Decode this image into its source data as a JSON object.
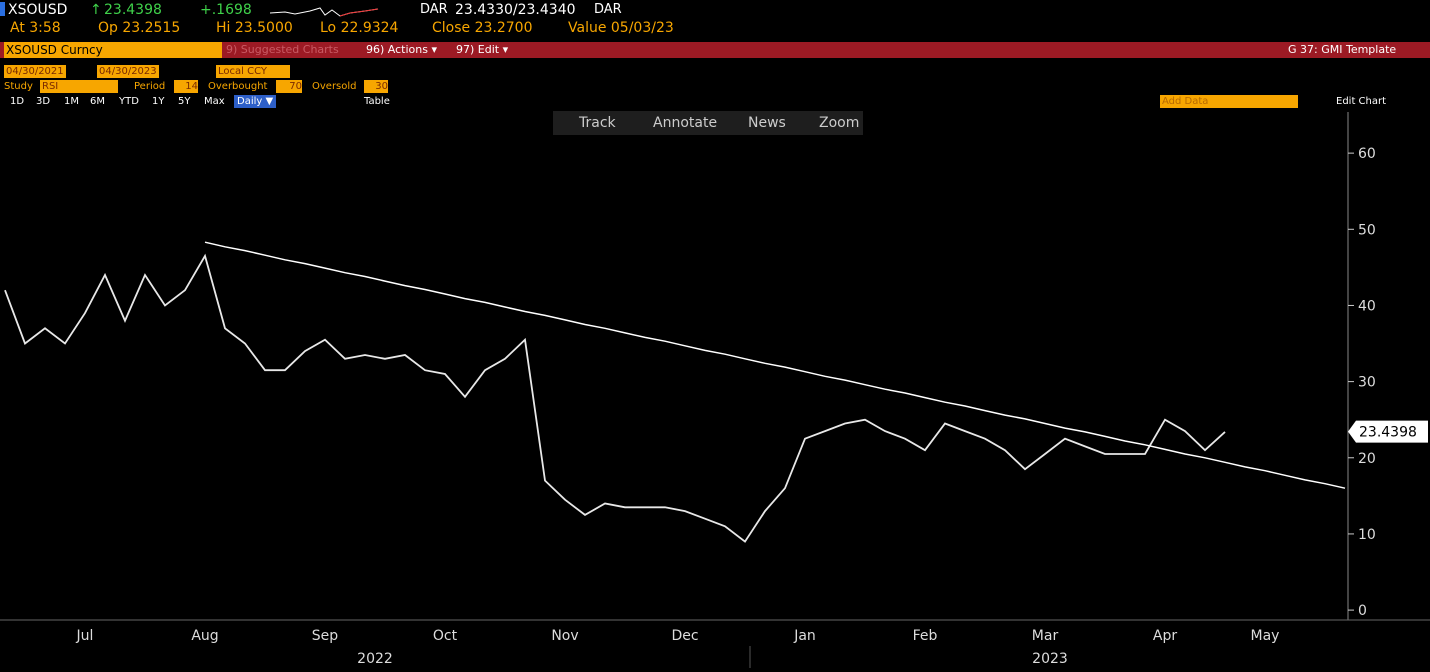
{
  "header": {
    "ticker": "XSOUSD",
    "arrow": "↑",
    "last": "23.4398",
    "change": "+.1698",
    "dar_label": "DAR",
    "bid_ask": "23.4330/23.4340",
    "dar_label_2": "DAR",
    "at": "At 3:58",
    "open": "Op 23.2515",
    "high": "Hi 23.5000",
    "low": "Lo 22.9324",
    "close": "Close 23.2700",
    "value_date": "Value 05/03/23"
  },
  "toolbar": {
    "security": "XSOUSD Curncy",
    "suggested": "9) Suggested Charts",
    "actions": "96) Actions ▾",
    "edit": "97) Edit ▾",
    "template": "G 37: GMI Template"
  },
  "range": {
    "start": "04/30/2021",
    "end": "04/30/2023",
    "currency": "Local CCY"
  },
  "study": {
    "label": "Study",
    "name": "RSI",
    "period_label": "Period",
    "period": "14",
    "overbought_label": "Overbought",
    "overbought": "70",
    "oversold_label": "Oversold",
    "oversold": "30"
  },
  "periods": [
    "1D",
    "3D",
    "1M",
    "6M",
    "YTD",
    "1Y",
    "5Y",
    "Max",
    "Daily ▼",
    "Table"
  ],
  "add_data": "Add Data",
  "edit_chart": "Edit Chart",
  "chart_tools": [
    "Track",
    "Annotate",
    "News",
    "Zoom"
  ],
  "chart_data": {
    "type": "line",
    "categories": [
      null,
      null,
      null,
      null,
      "Jul",
      null,
      null,
      null,
      null,
      null,
      "Aug",
      null,
      null,
      null,
      null,
      null,
      "Sep",
      null,
      null,
      null,
      null,
      null,
      "Oct",
      null,
      null,
      null,
      null,
      null,
      "Nov",
      null,
      null,
      null,
      null,
      null,
      "Dec",
      null,
      null,
      null,
      null,
      null,
      "Jan",
      null,
      null,
      null,
      null,
      null,
      "Feb",
      null,
      null,
      null,
      null,
      null,
      "Mar",
      null,
      null,
      null,
      null,
      null,
      "Apr",
      null,
      null,
      null,
      null,
      "May",
      null,
      null,
      null,
      null
    ],
    "series": [
      {
        "name": "RSI",
        "color": "#e8e8e8",
        "values": [
          42,
          35,
          37,
          35,
          39,
          44,
          38,
          44,
          40,
          42,
          46.5,
          37,
          35,
          31.5,
          31.5,
          34,
          35.5,
          33,
          33.5,
          33,
          33.5,
          31.5,
          31,
          28,
          31.5,
          33,
          35.5,
          17,
          14.5,
          12.5,
          14,
          13.5,
          13.5,
          13.5,
          13,
          12,
          11,
          9,
          13,
          16,
          22.5,
          23.5,
          24.5,
          25,
          23.5,
          22.5,
          21,
          24.5,
          23.5,
          22.5,
          21,
          18.5,
          20.5,
          22.5,
          21.5,
          20.5,
          20.5,
          20.5,
          25,
          23.5,
          21,
          23.4,
          null,
          null,
          null,
          null,
          null,
          null
        ]
      },
      {
        "name": "Trend",
        "color": "#ffffff",
        "values": [
          null,
          null,
          null,
          null,
          null,
          null,
          null,
          null,
          null,
          null,
          48.3,
          47.7,
          47.2,
          46.6,
          46.0,
          45.5,
          44.9,
          44.3,
          43.8,
          43.2,
          42.6,
          42.1,
          41.5,
          40.9,
          40.4,
          39.8,
          39.2,
          38.7,
          38.1,
          37.5,
          37.0,
          36.4,
          35.8,
          35.3,
          34.7,
          34.1,
          33.6,
          33.0,
          32.4,
          31.9,
          31.3,
          30.7,
          30.2,
          29.6,
          29.0,
          28.5,
          27.9,
          27.3,
          26.8,
          26.2,
          25.6,
          25.1,
          24.5,
          23.9,
          23.4,
          22.8,
          22.2,
          21.7,
          21.1,
          20.5,
          20.0,
          19.4,
          18.8,
          18.3,
          17.7,
          17.1,
          16.6,
          16.0
        ]
      }
    ],
    "last_value": 23.4398,
    "years": [
      "2022",
      "2023"
    ],
    "ylim": [
      -1.3,
      65.4
    ],
    "yticks": [
      0,
      10,
      20,
      30,
      40,
      50,
      60
    ]
  }
}
